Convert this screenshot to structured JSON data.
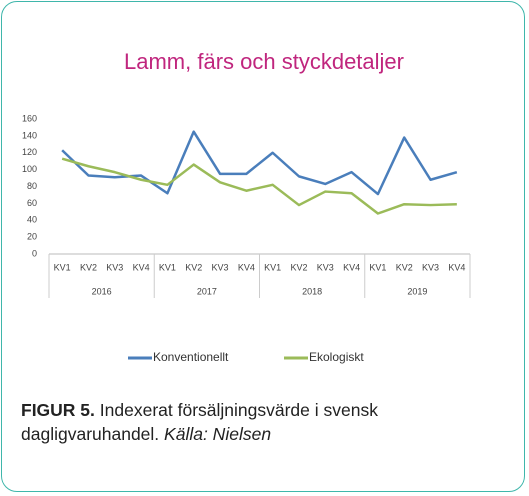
{
  "chart_data": {
    "type": "line",
    "title": "Lamm, färs och styckdetaljer",
    "categories": [
      "KV1",
      "KV2",
      "KV3",
      "KV4",
      "KV1",
      "KV2",
      "KV3",
      "KV4",
      "KV1",
      "KV2",
      "KV3",
      "KV4",
      "KV1",
      "KV2",
      "KV3",
      "KV4"
    ],
    "groups": [
      "2016",
      "2017",
      "2018",
      "2019"
    ],
    "series": [
      {
        "name": "Konventionellt",
        "color": "#4a7ebb",
        "values": [
          123,
          93,
          91,
          93,
          72,
          145,
          95,
          95,
          120,
          92,
          83,
          97,
          71,
          138,
          88,
          97
        ]
      },
      {
        "name": "Ekologiskt",
        "color": "#9bbb59",
        "values": [
          113,
          104,
          97,
          88,
          82,
          106,
          85,
          75,
          82,
          58,
          74,
          72,
          48,
          59,
          58,
          59
        ]
      }
    ],
    "ylim": [
      0,
      160
    ],
    "yticks": [
      0,
      20,
      40,
      60,
      80,
      100,
      120,
      140,
      160
    ],
    "grid": false,
    "legend": "bottom"
  },
  "caption": {
    "label": "FIGUR 5.",
    "text": "Indexerat försäljningsvärde i svensk dagligvaruhandel.",
    "source": "Källa: Nielsen"
  }
}
